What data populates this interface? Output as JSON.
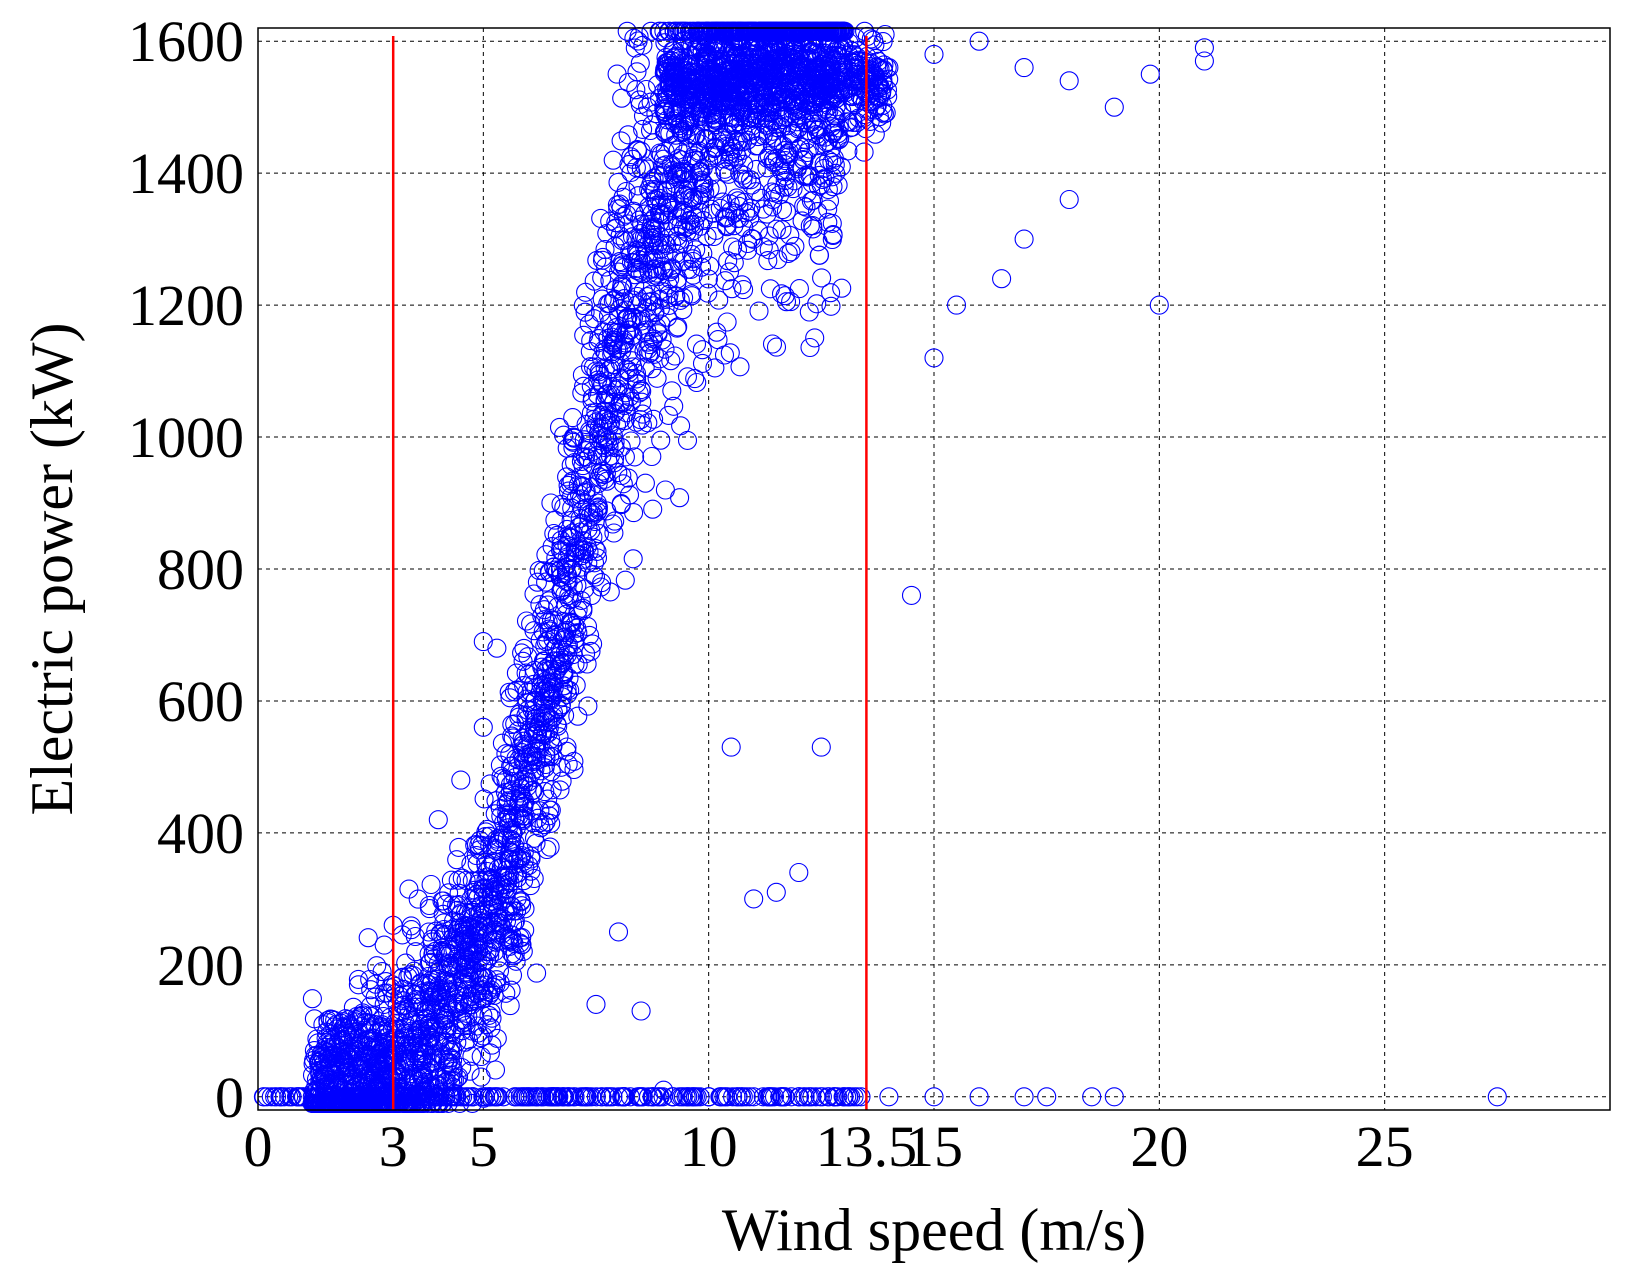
{
  "chart_data": {
    "type": "scatter",
    "title": "",
    "xlabel": "Wind speed (m/s)",
    "ylabel": "Electric power (kW)",
    "xlim": [
      0,
      30
    ],
    "ylim": [
      -20,
      1620
    ],
    "x_tick_labels": [
      {
        "value": 0,
        "label": "0"
      },
      {
        "value": 3,
        "label": "3"
      },
      {
        "value": 5,
        "label": "5"
      },
      {
        "value": 10,
        "label": "10"
      },
      {
        "value": 13.5,
        "label": "13.5"
      },
      {
        "value": 15,
        "label": "15"
      },
      {
        "value": 20,
        "label": "20"
      },
      {
        "value": 25,
        "label": "25"
      }
    ],
    "x_grid": [
      5,
      10,
      15,
      20,
      25
    ],
    "y_ticks": [
      0,
      200,
      400,
      600,
      800,
      1000,
      1200,
      1400,
      1600
    ],
    "y_tick_labels": [
      "0",
      "200",
      "400",
      "600",
      "800",
      "1000",
      "1200",
      "1400",
      "1600"
    ],
    "grid": true,
    "grid_style": "dashed",
    "marker": "open-circle",
    "series_color": "#0000ff",
    "reference_lines": [
      {
        "x": 3,
        "color": "#ff0000"
      },
      {
        "x": 13.5,
        "color": "#ff0000"
      }
    ],
    "series": [
      {
        "description_points": [
          [
            0.2,
            0
          ],
          [
            0.5,
            0
          ],
          [
            1.0,
            0
          ],
          [
            1.5,
            0
          ],
          [
            2.0,
            0
          ],
          [
            2.5,
            0
          ],
          [
            3.5,
            0
          ],
          [
            4.5,
            0
          ],
          [
            6,
            0
          ],
          [
            8,
            0
          ],
          [
            9.5,
            0
          ],
          [
            10,
            0
          ],
          [
            11,
            0
          ],
          [
            12,
            0
          ],
          [
            13,
            0
          ],
          [
            14,
            0
          ],
          [
            15,
            0
          ],
          [
            16,
            0
          ],
          [
            17,
            0
          ],
          [
            17.5,
            0
          ],
          [
            18.5,
            0
          ],
          [
            19,
            0
          ],
          [
            27.5,
            0
          ],
          [
            1.5,
            30
          ],
          [
            2.0,
            60
          ],
          [
            2.5,
            100
          ],
          [
            2.8,
            140
          ],
          [
            3.0,
            260
          ],
          [
            2.8,
            230
          ],
          [
            3.2,
            180
          ],
          [
            3.5,
            220
          ],
          [
            3.8,
            290
          ],
          [
            4.0,
            420
          ],
          [
            4.5,
            480
          ],
          [
            5.0,
            560
          ],
          [
            5.0,
            690
          ],
          [
            5.3,
            680
          ],
          [
            5.5,
            520
          ],
          [
            6.0,
            640
          ],
          [
            6.2,
            780
          ],
          [
            6.5,
            900
          ],
          [
            7.0,
            1000
          ],
          [
            7.5,
            1100
          ],
          [
            8.0,
            1250
          ],
          [
            8.5,
            1300
          ],
          [
            9.0,
            1400
          ],
          [
            9.5,
            1500
          ],
          [
            10.0,
            1550
          ],
          [
            10.5,
            1580
          ],
          [
            11.0,
            1600
          ],
          [
            12.0,
            1580
          ],
          [
            13.0,
            1560
          ],
          [
            13.5,
            1550
          ],
          [
            14.0,
            1560
          ],
          [
            15.0,
            1580
          ],
          [
            16.0,
            1600
          ],
          [
            17.0,
            1560
          ],
          [
            18.0,
            1540
          ],
          [
            19.0,
            1500
          ],
          [
            19.8,
            1550
          ],
          [
            20.0,
            1200
          ],
          [
            21.0,
            1570
          ],
          [
            21.0,
            1590
          ],
          [
            11.5,
            310
          ],
          [
            12.0,
            340
          ],
          [
            11.0,
            300
          ],
          [
            10.5,
            530
          ],
          [
            12.5,
            530
          ],
          [
            14.5,
            760
          ],
          [
            15.0,
            1120
          ],
          [
            15.5,
            1200
          ],
          [
            16.5,
            1240
          ],
          [
            17.0,
            1300
          ],
          [
            18.0,
            1360
          ],
          [
            9.0,
            10
          ],
          [
            8.0,
            250
          ],
          [
            7.5,
            140
          ],
          [
            8.5,
            130
          ]
        ]
      }
    ]
  }
}
